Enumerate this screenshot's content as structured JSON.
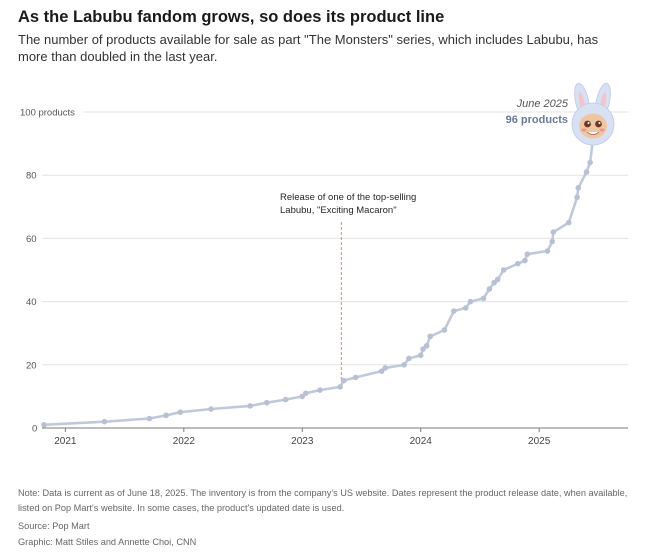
{
  "header": {
    "title": "As the Labubu fandom grows, so does its product line",
    "subtitle": "The number of products available for sale as part \"The Monsters\" series, which includes Labubu, has more than doubled in the last year."
  },
  "colors": {
    "line": "#c1c9d9",
    "point": "#b8c1d3",
    "annotation_line": "#e8874a",
    "highlight_text": "#6a7a99",
    "grid": "#e3e3e3",
    "axis": "#7a7a7a"
  },
  "chart_data": {
    "type": "line",
    "title": "As the Labubu fandom grows, so does its product line",
    "xlabel": "",
    "ylabel": "products",
    "xlim": [
      2020.6,
      2025.75
    ],
    "ylim": [
      0,
      100
    ],
    "x_ticks": [
      2021,
      2022,
      2023,
      2024,
      2025
    ],
    "x_tick_labels": [
      "2021",
      "2022",
      "2023",
      "2024",
      "2025"
    ],
    "y_ticks": [
      0,
      20,
      40,
      60,
      80,
      100
    ],
    "y_tick_labels": [
      "0",
      "20",
      "40",
      "60",
      "80",
      "100 products"
    ],
    "grid": true,
    "series": [
      {
        "name": "Products in \"The Monsters\" series",
        "x": [
          2020.82,
          2021.33,
          2021.71,
          2021.85,
          2021.97,
          2022.23,
          2022.56,
          2022.7,
          2022.86,
          2023.0,
          2023.03,
          2023.15,
          2023.32,
          2023.35,
          2023.45,
          2023.67,
          2023.7,
          2023.86,
          2023.9,
          2024.0,
          2024.02,
          2024.05,
          2024.08,
          2024.2,
          2024.28,
          2024.38,
          2024.42,
          2024.53,
          2024.58,
          2024.62,
          2024.65,
          2024.7,
          2024.82,
          2024.88,
          2024.9,
          2025.07,
          2025.11,
          2025.12,
          2025.25,
          2025.32,
          2025.33,
          2025.4,
          2025.43,
          2025.47
        ],
        "y": [
          1,
          2,
          3,
          4,
          5,
          6,
          7,
          8,
          9,
          10,
          11,
          12,
          13,
          15,
          16,
          18,
          19,
          20,
          22,
          23,
          25,
          26,
          29,
          31,
          37,
          38,
          40,
          41,
          44,
          46,
          47,
          50,
          52,
          53,
          55,
          56,
          59,
          62,
          65,
          73,
          76,
          81,
          84,
          96
        ]
      }
    ],
    "annotations": [
      {
        "x": 2023.33,
        "text_line1": "Release of one of the top-selling",
        "text_line2": "Labubu, \"Exciting Macaron\""
      },
      {
        "x": 2025.47,
        "y": 96,
        "date_label": "June 2025",
        "value_label": "96 products"
      }
    ]
  },
  "footer": {
    "note": "Note: Data is current as of June 18, 2025. The inventory is from the company's US website. Dates represent the product release date, when available, listed on Pop Mart's website. In some cases, the product's updated date is used.",
    "source": "Source: Pop Mart",
    "graphic": "Graphic: Matt Stiles and Annette Choi, CNN"
  }
}
